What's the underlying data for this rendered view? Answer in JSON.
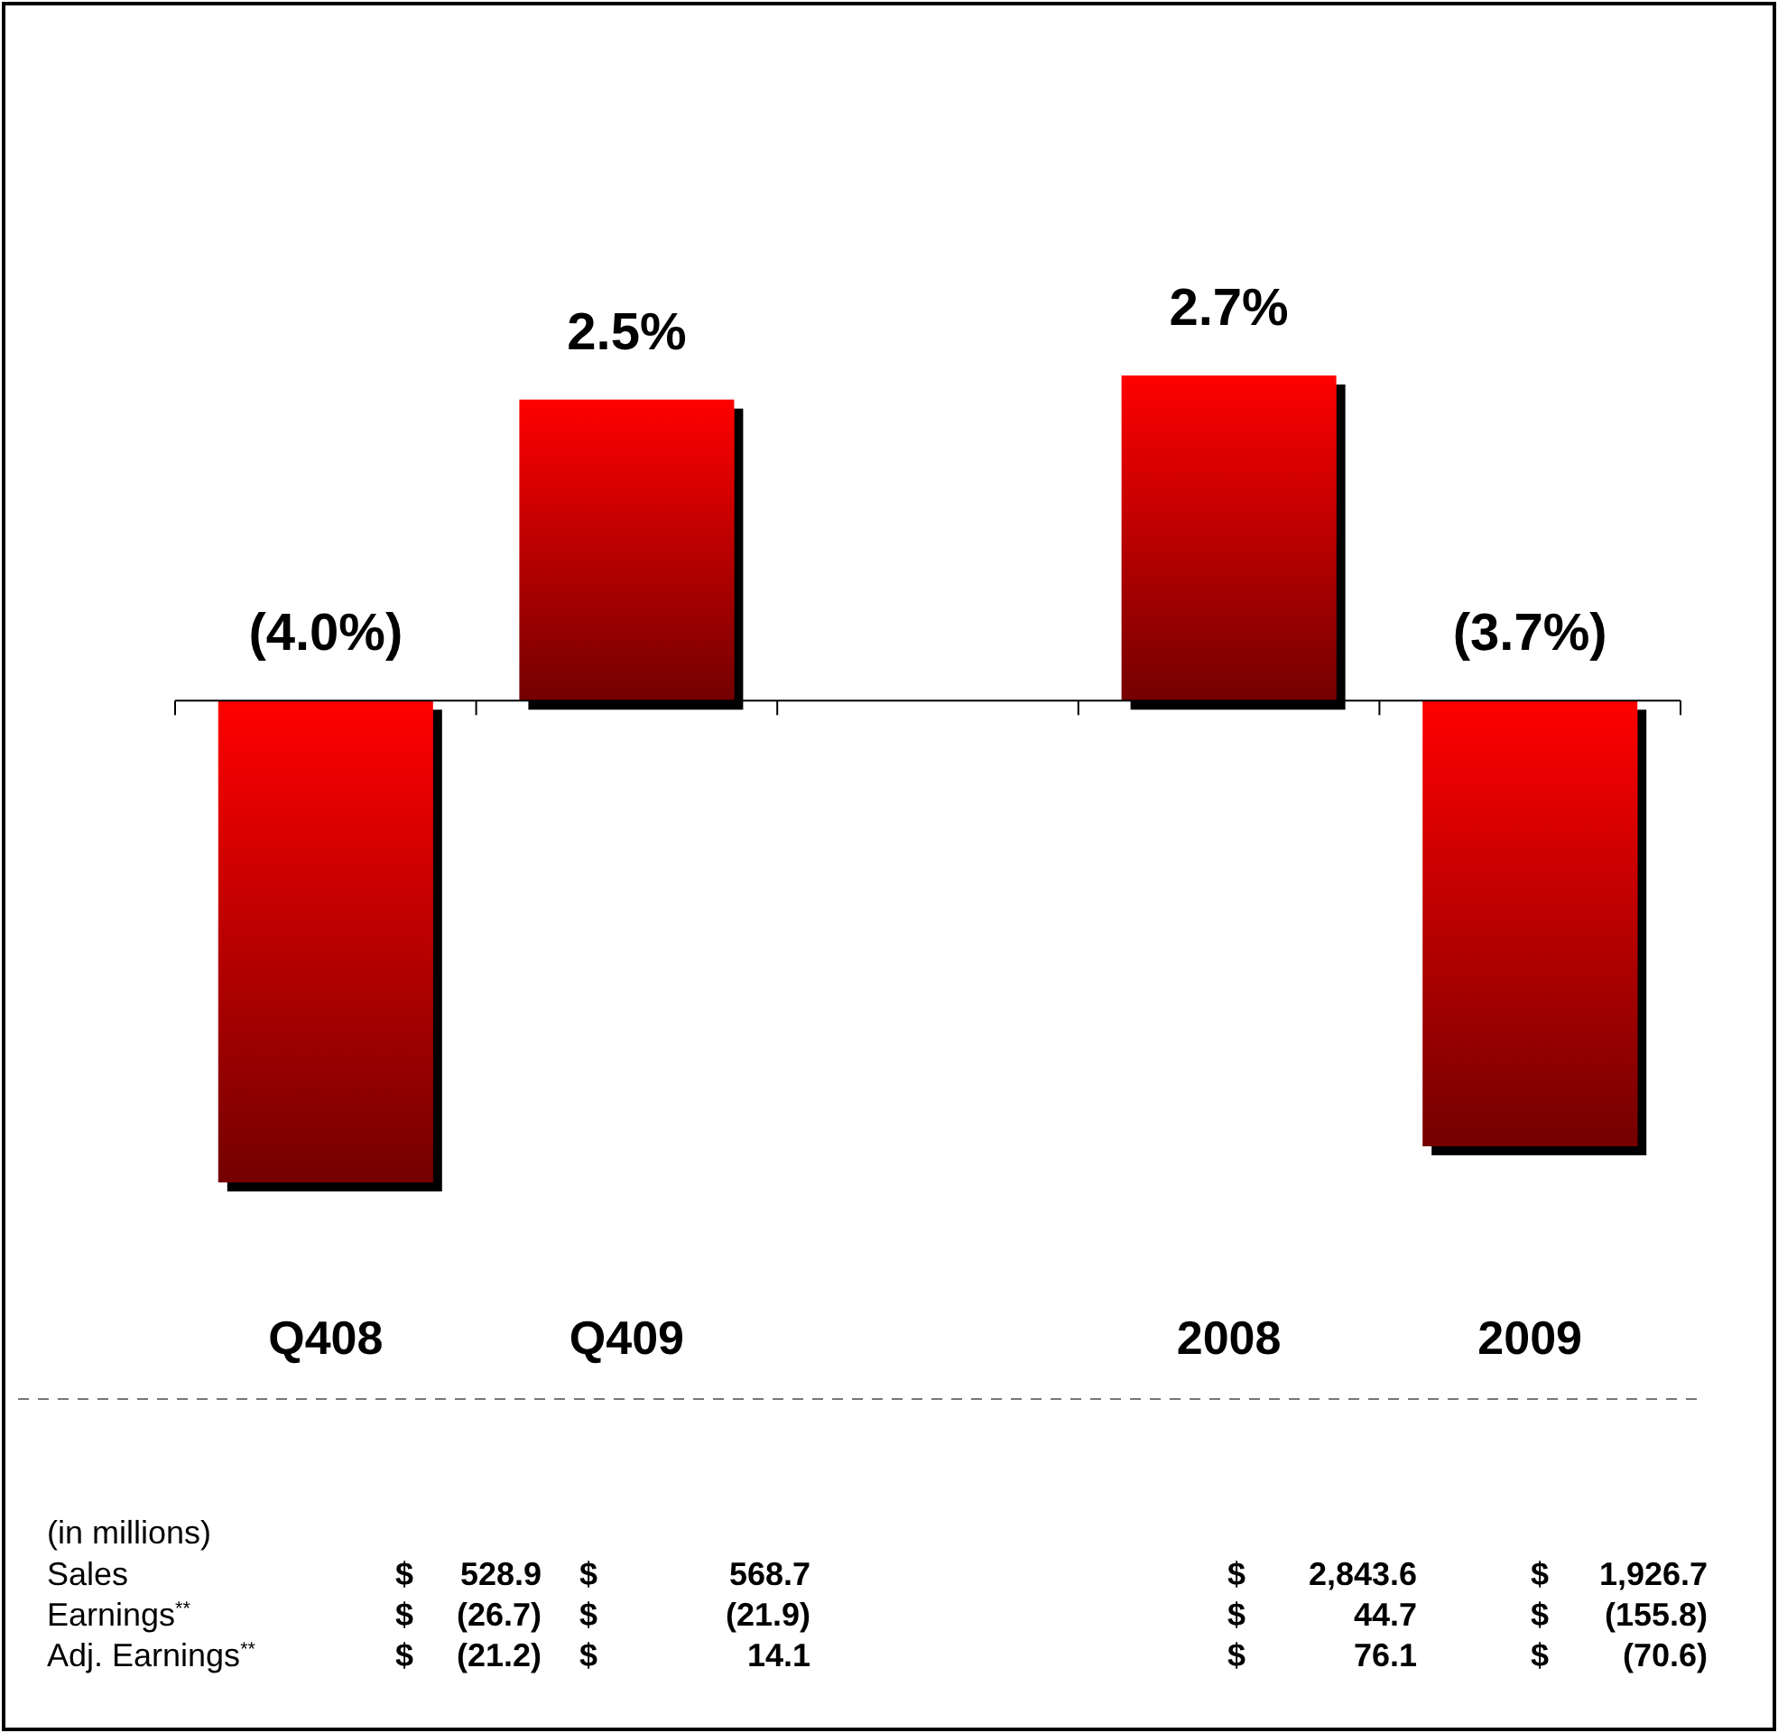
{
  "chart_data": {
    "type": "bar",
    "categories": [
      "Q408",
      "Q409",
      null,
      "2008",
      "2009"
    ],
    "values": [
      -4.0,
      2.5,
      null,
      2.7,
      -3.7
    ],
    "value_labels": [
      "(4.0%)",
      "2.5%",
      null,
      "2.7%",
      "(3.7%)"
    ],
    "color": "#ff0000",
    "ref_lines": [
      {
        "axis": "y",
        "value": 0,
        "color": "#000000"
      }
    ],
    "annotations": [
      "(in millions)",
      "Sales",
      "$",
      "528.9",
      "$",
      "568.7",
      "$",
      "2,843.6",
      "$",
      "1,926.7",
      "Earnings$^{**}$",
      "$",
      "(26.7)",
      "$",
      "(21.9)",
      "$",
      "44.7",
      "$",
      "(155.8)",
      "Adj. Earnings$^{**}$",
      "$",
      "(21.2)",
      "$",
      "14.1",
      "$",
      "76.1",
      "$",
      "(70.6)"
    ]
  }
}
